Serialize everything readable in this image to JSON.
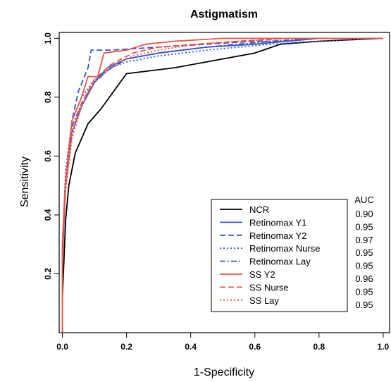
{
  "chart_data": {
    "type": "line",
    "title": "Astigmatism",
    "xlabel": "1-Specificity",
    "ylabel": "Sensitivity",
    "xlim": [
      -0.01,
      1.02
    ],
    "ylim": [
      0.0,
      1.02
    ],
    "xticks": [
      "0.0",
      "0.2",
      "0.4",
      "0.6",
      "0.8",
      "1.0"
    ],
    "yticks": [
      "0.2",
      "0.4",
      "0.6",
      "0.8",
      "1.0"
    ],
    "grid": false,
    "legend_position": "bottom-right",
    "auc_header": "AUC",
    "series": [
      {
        "name": "NCR",
        "auc": "0.90",
        "color": "#000000",
        "dash": "solid",
        "x": [
          0.0,
          0.01,
          0.02,
          0.04,
          0.08,
          0.12,
          0.2,
          0.35,
          0.5,
          0.6,
          0.68,
          0.8,
          1.0
        ],
        "y": [
          0.12,
          0.38,
          0.5,
          0.61,
          0.71,
          0.76,
          0.88,
          0.9,
          0.93,
          0.95,
          0.98,
          0.99,
          1.0
        ]
      },
      {
        "name": "Retinomax Y1",
        "auc": "0.95",
        "color": "#3355cc",
        "dash": "solid",
        "x": [
          0.0,
          0.01,
          0.03,
          0.06,
          0.1,
          0.14,
          0.2,
          0.3,
          0.45,
          0.6,
          0.7,
          0.8,
          1.0
        ],
        "y": [
          0.25,
          0.5,
          0.68,
          0.77,
          0.85,
          0.9,
          0.93,
          0.95,
          0.97,
          0.98,
          0.99,
          1.0,
          1.0
        ]
      },
      {
        "name": "Retinomax Y2",
        "auc": "0.97",
        "color": "#3355cc",
        "dash": "dashed",
        "x": [
          0.0,
          0.01,
          0.03,
          0.05,
          0.08,
          0.09,
          0.15,
          0.3,
          0.45,
          0.6,
          0.7,
          0.8,
          1.0
        ],
        "y": [
          0.3,
          0.52,
          0.72,
          0.82,
          0.9,
          0.96,
          0.96,
          0.97,
          0.98,
          0.99,
          0.99,
          1.0,
          1.0
        ]
      },
      {
        "name": "Retinomax Nurse",
        "auc": "0.95",
        "color": "#3355cc",
        "dash": "dotted",
        "x": [
          0.0,
          0.01,
          0.03,
          0.06,
          0.1,
          0.15,
          0.2,
          0.3,
          0.45,
          0.55,
          0.65,
          0.8,
          1.0
        ],
        "y": [
          0.3,
          0.55,
          0.72,
          0.8,
          0.86,
          0.9,
          0.92,
          0.94,
          0.96,
          0.97,
          0.98,
          0.99,
          1.0
        ]
      },
      {
        "name": "Retinomax Lay",
        "auc": "0.95",
        "color": "#3355cc",
        "dash": "dashdot",
        "x": [
          0.0,
          0.01,
          0.03,
          0.06,
          0.1,
          0.14,
          0.2,
          0.3,
          0.45,
          0.55,
          0.65,
          0.8,
          1.0
        ],
        "y": [
          0.28,
          0.52,
          0.7,
          0.78,
          0.85,
          0.89,
          0.93,
          0.95,
          0.97,
          0.98,
          0.99,
          1.0,
          1.0
        ]
      },
      {
        "name": "SS Y2",
        "auc": "0.96",
        "color": "#ee5544",
        "dash": "solid",
        "x": [
          0.0,
          0.0,
          0.01,
          0.03,
          0.06,
          0.08,
          0.11,
          0.13,
          0.2,
          0.26,
          0.35,
          0.5,
          0.62,
          0.8,
          1.0
        ],
        "y": [
          0.0,
          0.3,
          0.52,
          0.72,
          0.8,
          0.87,
          0.87,
          0.95,
          0.96,
          0.98,
          0.99,
          1.0,
          1.0,
          1.0,
          1.0
        ]
      },
      {
        "name": "SS Nurse",
        "auc": "0.95",
        "color": "#ee5544",
        "dash": "dashed",
        "x": [
          0.0,
          0.0,
          0.01,
          0.03,
          0.06,
          0.1,
          0.15,
          0.22,
          0.3,
          0.42,
          0.55,
          0.7,
          1.0
        ],
        "y": [
          0.0,
          0.28,
          0.5,
          0.68,
          0.78,
          0.86,
          0.91,
          0.95,
          0.97,
          0.98,
          0.99,
          1.0,
          1.0
        ]
      },
      {
        "name": "SS Lay",
        "auc": "0.95",
        "color": "#ee5544",
        "dash": "dotted",
        "x": [
          0.0,
          0.0,
          0.01,
          0.03,
          0.06,
          0.1,
          0.15,
          0.22,
          0.3,
          0.42,
          0.55,
          0.7,
          1.0
        ],
        "y": [
          0.0,
          0.26,
          0.48,
          0.66,
          0.77,
          0.85,
          0.9,
          0.94,
          0.96,
          0.98,
          0.99,
          1.0,
          1.0
        ]
      }
    ]
  }
}
